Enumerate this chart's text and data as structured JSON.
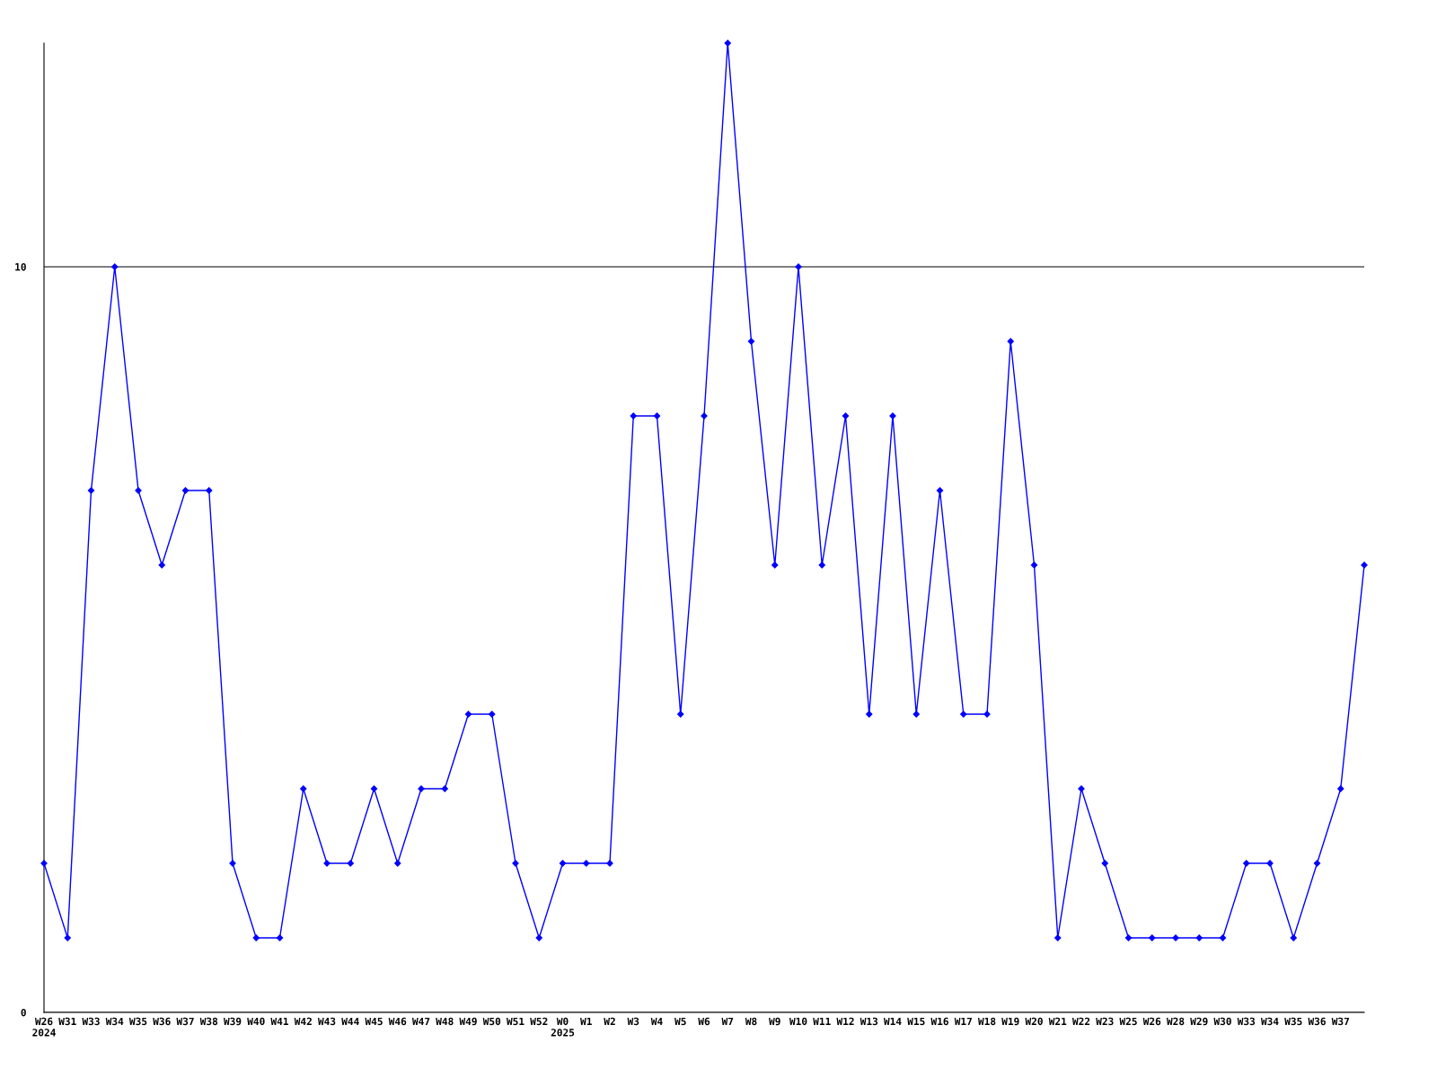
{
  "chart_data": {
    "type": "line",
    "categories": [
      "W26\n2024",
      "W31",
      "W33",
      "W34",
      "W35",
      "W36",
      "W37",
      "W38",
      "W39",
      "W40",
      "W41",
      "W42",
      "W43",
      "W44",
      "W45",
      "W46",
      "W47",
      "W48",
      "W49",
      "W50",
      "W51",
      "W52",
      "W0\n2025",
      "W1",
      "W2",
      "W3",
      "W4",
      "W5",
      "W6",
      "W7",
      "W8",
      "W9",
      "W10",
      "W11",
      "W12",
      "W13",
      "W14",
      "W15",
      "W16",
      "W17",
      "W18",
      "W19",
      "W20",
      "W21",
      "W22",
      "W23",
      "W25",
      "W26",
      "W28",
      "W29",
      "W30",
      "W33",
      "W34",
      "W35",
      "W36",
      "W37",
      null
    ],
    "series": [
      {
        "color": "#0000ff",
        "values": [
          2,
          1,
          7,
          10,
          7,
          6,
          7,
          7,
          2,
          1,
          1,
          3,
          2,
          2,
          3,
          2,
          3,
          3,
          4,
          4,
          2,
          1,
          2,
          2,
          2,
          8,
          8,
          4,
          8,
          13,
          9,
          6,
          10,
          6,
          8,
          4,
          8,
          4,
          7,
          4,
          4,
          9,
          6,
          1,
          3,
          2,
          1,
          1,
          1,
          1,
          1,
          2,
          2,
          1,
          2,
          3,
          6
        ]
      }
    ],
    "ylim": [
      0,
      13
    ],
    "yticks": [
      0,
      10
    ],
    "grid": "y",
    "marker": "diamond",
    "line_style": "solid",
    "legend": false
  }
}
